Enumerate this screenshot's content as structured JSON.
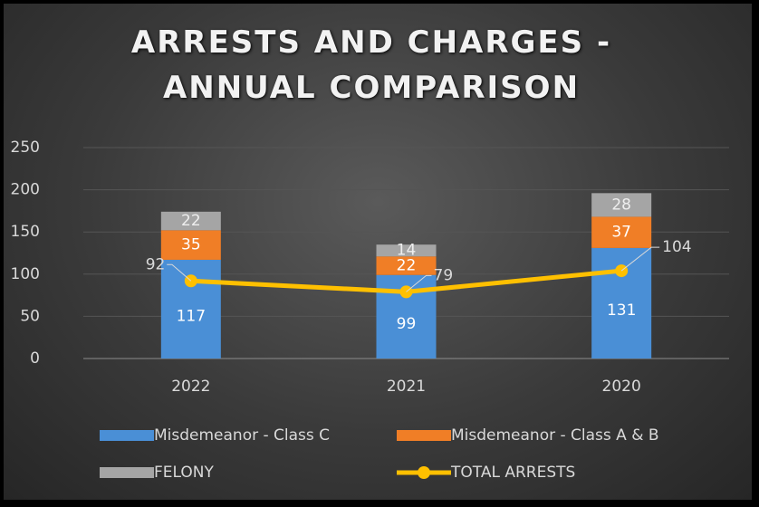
{
  "chart_data": {
    "type": "bar",
    "stacked": true,
    "title": "ARRESTS AND CHARGES - ANNUAL COMPARISON",
    "categories": [
      "2022",
      "2021",
      "2020"
    ],
    "series": [
      {
        "name": "Misdemeanor - Class C",
        "color": "#4a8fd6",
        "values": [
          117,
          99,
          131
        ]
      },
      {
        "name": "Misdemeanor - Class A & B",
        "color": "#f07e26",
        "values": [
          35,
          22,
          37
        ]
      },
      {
        "name": "FELONY",
        "color": "#a5a5a5",
        "values": [
          22,
          14,
          28
        ]
      },
      {
        "name": "TOTAL ARRESTS",
        "color": "#ffc000",
        "type": "line",
        "values": [
          92,
          79,
          104
        ]
      }
    ],
    "ylim": [
      0,
      250
    ],
    "yticks": [
      0,
      50,
      100,
      150,
      200,
      250
    ],
    "grid": true,
    "legend": "bottom"
  }
}
